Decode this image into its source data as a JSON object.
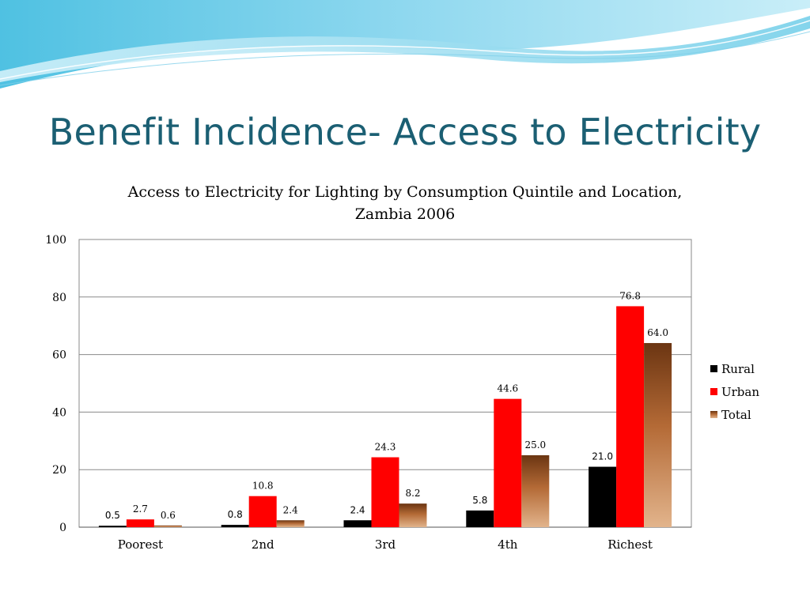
{
  "slide": {
    "title": "Benefit Incidence- Access to Electricity"
  },
  "colors": {
    "accent_dark": "#1b5f73",
    "wave_light": "#a9dff0",
    "wave_mid": "#5ec7e6"
  },
  "chart_data": {
    "type": "bar",
    "title": "Access to Electricity for Lighting by Consumption Quintile and Location,",
    "subtitle": "Zambia 2006",
    "xlabel": "",
    "ylabel": "",
    "categories": [
      "Poorest",
      "2nd",
      "3rd",
      "4th",
      "Richest"
    ],
    "ylim": [
      0,
      100
    ],
    "yticks": [
      0,
      20,
      40,
      60,
      80,
      100
    ],
    "grid": true,
    "legend_position": "right",
    "series": [
      {
        "name": "Rural",
        "values": [
          0.5,
          0.8,
          2.4,
          5.8,
          21.0
        ],
        "labels": [
          "0.5",
          "0.8",
          "2.4",
          "5.8",
          "21.0"
        ],
        "color": "#000000"
      },
      {
        "name": "Urban",
        "values": [
          2.7,
          10.8,
          24.3,
          44.6,
          76.8
        ],
        "labels": [
          "2.7",
          "10.8",
          "24.3",
          "44.6",
          "76.8"
        ],
        "color": "#ff0000"
      },
      {
        "name": "Total",
        "values": [
          0.6,
          2.4,
          8.2,
          25.0,
          64.0
        ],
        "labels": [
          "0.6",
          "2.4",
          "8.2",
          "25.0",
          "64.0"
        ],
        "color": "#9c5a2e"
      }
    ]
  }
}
